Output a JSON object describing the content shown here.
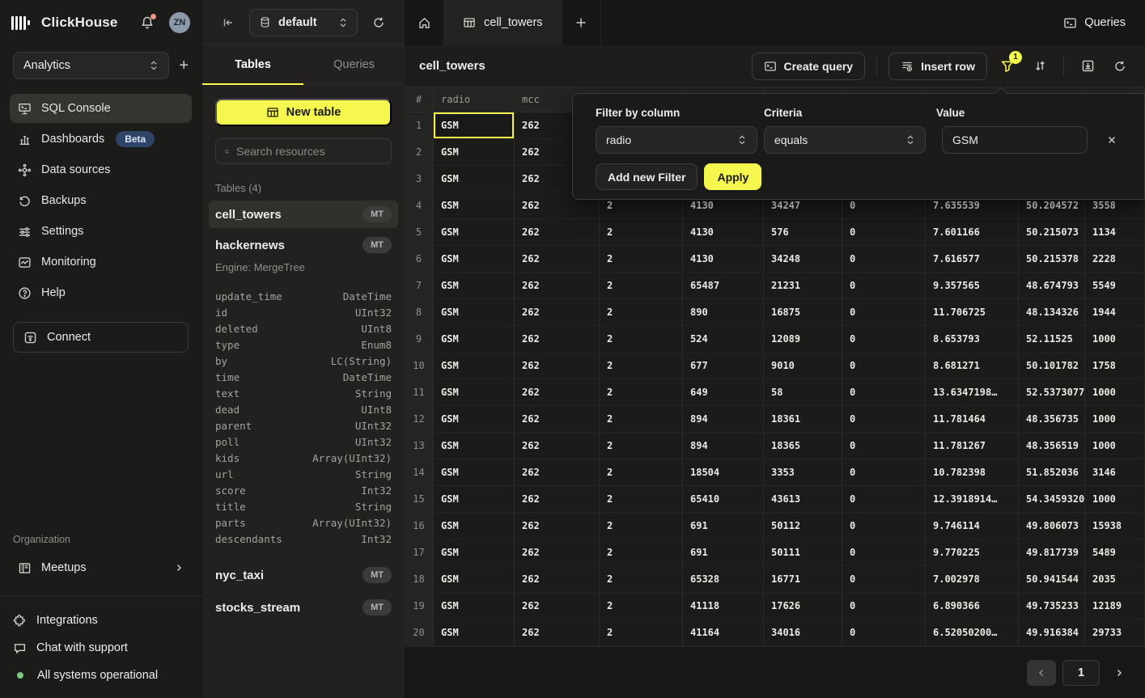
{
  "colors": {
    "accent": "#F6F74E",
    "beta_badge_bg": "#2E4467",
    "avatar_bg": "#8C99A8",
    "notification_dot": "#F2958D",
    "status_dot": "#7CC97F"
  },
  "topbar": {
    "brand": "ClickHouse",
    "avatar": "ZN"
  },
  "sidebar": {
    "workspace": "Analytics",
    "nav": [
      {
        "label": "SQL Console"
      },
      {
        "label": "Dashboards",
        "badge": "Beta"
      },
      {
        "label": "Data sources"
      },
      {
        "label": "Backups"
      },
      {
        "label": "Settings"
      },
      {
        "label": "Monitoring"
      },
      {
        "label": "Help"
      }
    ],
    "connect_label": "Connect",
    "organization_label": "Organization",
    "meetups_label": "Meetups",
    "footer": [
      {
        "label": "Integrations"
      },
      {
        "label": "Chat with support"
      },
      {
        "label": "All systems operational"
      }
    ]
  },
  "explorer": {
    "database": "default",
    "tabs": [
      "Tables",
      "Queries"
    ],
    "new_table_label": "New table",
    "search_placeholder": "Search resources",
    "tables_count_label": "Tables (4)",
    "tables": [
      {
        "name": "cell_towers",
        "badge": "MT"
      },
      {
        "name": "hackernews",
        "badge": "MT",
        "engine": "Engine: MergeTree"
      },
      {
        "name": "nyc_taxi",
        "badge": "MT"
      },
      {
        "name": "stocks_stream",
        "badge": "MT"
      }
    ],
    "schema": [
      [
        "update_time",
        "DateTime"
      ],
      [
        "id",
        "UInt32"
      ],
      [
        "deleted",
        "UInt8"
      ],
      [
        "type",
        "Enum8"
      ],
      [
        "by",
        "LC(String)"
      ],
      [
        "time",
        "DateTime"
      ],
      [
        "text",
        "String"
      ],
      [
        "dead",
        "UInt8"
      ],
      [
        "parent",
        "UInt32"
      ],
      [
        "poll",
        "UInt32"
      ],
      [
        "kids",
        "Array(UInt32)"
      ],
      [
        "url",
        "String"
      ],
      [
        "score",
        "Int32"
      ],
      [
        "title",
        "String"
      ],
      [
        "parts",
        "Array(UInt32)"
      ],
      [
        "descendants",
        "Int32"
      ]
    ]
  },
  "main": {
    "tab": "cell_towers",
    "queries_button": "Queries",
    "toolbar": {
      "title": "cell_towers",
      "create_query": "Create query",
      "insert_row": "Insert row",
      "filter_badge": "1"
    },
    "filter_popup": {
      "column_label": "Filter by column",
      "column_value": "radio",
      "criteria_label": "Criteria",
      "criteria_value": "equals",
      "value_label": "Value",
      "value": "GSM",
      "add_button": "Add new Filter",
      "apply_button": "Apply"
    },
    "grid": {
      "headers": [
        "#",
        "radio",
        "mcc",
        "",
        "",
        "",
        "",
        "",
        "",
        ""
      ],
      "rows": [
        [
          "1",
          "GSM",
          "262",
          "",
          "",
          "",
          "",
          "",
          "",
          ""
        ],
        [
          "2",
          "GSM",
          "262",
          "",
          "",
          "",
          "",
          "",
          "",
          ""
        ],
        [
          "3",
          "GSM",
          "262",
          "",
          "",
          "",
          "",
          "",
          "",
          ""
        ],
        [
          "4",
          "GSM",
          "262",
          "2",
          "4130",
          "34247",
          "0",
          "7.635539",
          "50.204572",
          "3558"
        ],
        [
          "5",
          "GSM",
          "262",
          "2",
          "4130",
          "576",
          "0",
          "7.601166",
          "50.215073",
          "1134"
        ],
        [
          "6",
          "GSM",
          "262",
          "2",
          "4130",
          "34248",
          "0",
          "7.616577",
          "50.215378",
          "2228"
        ],
        [
          "7",
          "GSM",
          "262",
          "2",
          "65487",
          "21231",
          "0",
          "9.357565",
          "48.674793",
          "5549"
        ],
        [
          "8",
          "GSM",
          "262",
          "2",
          "890",
          "16875",
          "0",
          "11.706725",
          "48.134326",
          "1944"
        ],
        [
          "9",
          "GSM",
          "262",
          "2",
          "524",
          "12089",
          "0",
          "8.653793",
          "52.11525",
          "1000"
        ],
        [
          "10",
          "GSM",
          "262",
          "2",
          "677",
          "9010",
          "0",
          "8.681271",
          "50.101782",
          "1758"
        ],
        [
          "11",
          "GSM",
          "262",
          "2",
          "649",
          "58",
          "0",
          "13.6347198…",
          "52.5373077…",
          "1000"
        ],
        [
          "12",
          "GSM",
          "262",
          "2",
          "894",
          "18361",
          "0",
          "11.781464",
          "48.356735",
          "1000"
        ],
        [
          "13",
          "GSM",
          "262",
          "2",
          "894",
          "18365",
          "0",
          "11.781267",
          "48.356519",
          "1000"
        ],
        [
          "14",
          "GSM",
          "262",
          "2",
          "18504",
          "3353",
          "0",
          "10.782398",
          "51.852036",
          "3146"
        ],
        [
          "15",
          "GSM",
          "262",
          "2",
          "65410",
          "43613",
          "0",
          "12.3918914…",
          "54.3459320…",
          "1000"
        ],
        [
          "16",
          "GSM",
          "262",
          "2",
          "691",
          "50112",
          "0",
          "9.746114",
          "49.806073",
          "15938"
        ],
        [
          "17",
          "GSM",
          "262",
          "2",
          "691",
          "50111",
          "0",
          "9.770225",
          "49.817739",
          "5489"
        ],
        [
          "18",
          "GSM",
          "262",
          "2",
          "65328",
          "16771",
          "0",
          "7.002978",
          "50.941544",
          "2035"
        ],
        [
          "19",
          "GSM",
          "262",
          "2",
          "41118",
          "17626",
          "0",
          "6.890366",
          "49.735233",
          "12189"
        ],
        [
          "20",
          "GSM",
          "262",
          "2",
          "41164",
          "34016",
          "0",
          "6.52050200…",
          "49.916384",
          "29733"
        ]
      ],
      "selected_cell": {
        "row": 0,
        "col": 1
      }
    },
    "pagination": {
      "page": "1"
    }
  }
}
